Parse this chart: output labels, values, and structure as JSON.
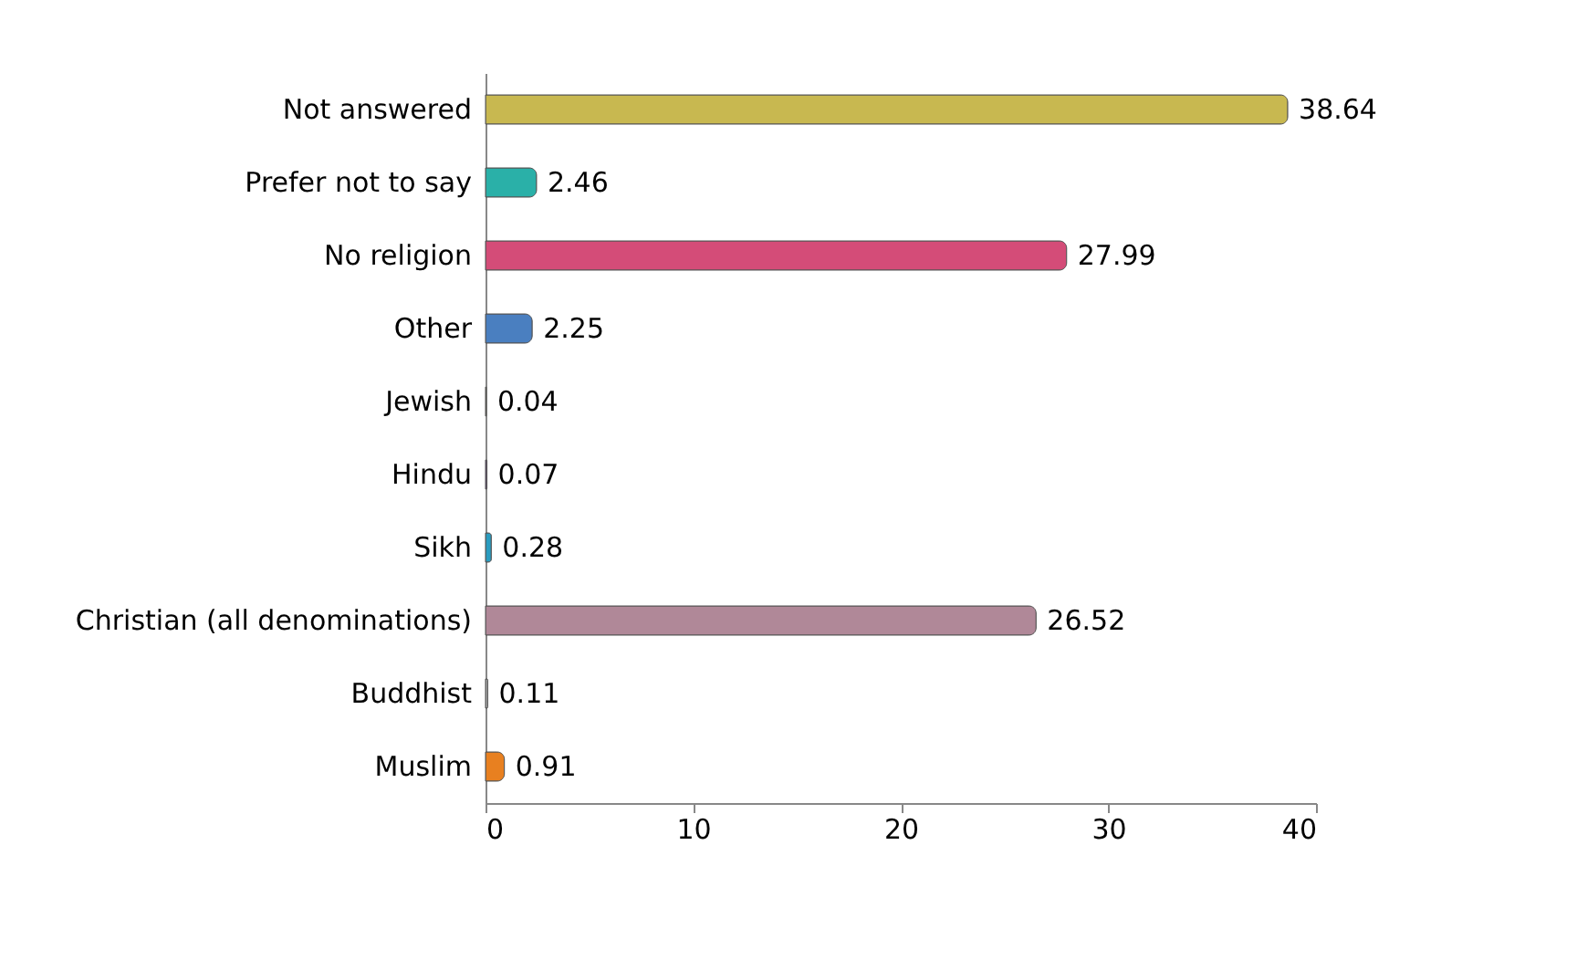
{
  "chart_data": {
    "type": "bar",
    "orientation": "horizontal",
    "categories": [
      "Not answered",
      "Prefer not to say",
      "No religion",
      "Other",
      "Jewish",
      "Hindu",
      "Sikh",
      "Christian (all denominations)",
      "Buddhist",
      "Muslim"
    ],
    "values": [
      38.64,
      2.46,
      27.99,
      2.25,
      0.04,
      0.07,
      0.28,
      26.52,
      0.11,
      0.91
    ],
    "colors": [
      "#c8b850",
      "#2ab0a8",
      "#d44c78",
      "#4a7fc0",
      "#8aa040",
      "#6a3c8c",
      "#2a9cc0",
      "#b08898",
      "#a8a8a8",
      "#e88020"
    ],
    "xlim": [
      0,
      40
    ],
    "xticks": [
      0,
      10,
      20,
      30,
      40
    ],
    "grid": false,
    "data_labels": true
  }
}
